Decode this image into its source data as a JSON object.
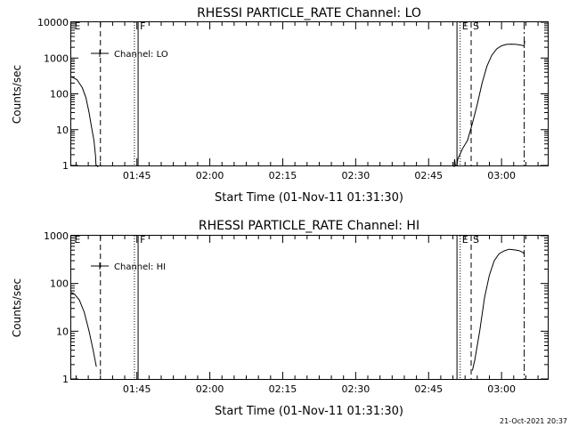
{
  "timestamp": "21-Oct-2021 20:37",
  "chart_data": [
    {
      "type": "line",
      "title": "RHESSI PARTICLE_RATE Channel: LO",
      "xlabel": "Start Time (01-Nov-11 01:31:30)",
      "ylabel": "Counts/sec",
      "yscale": "log",
      "ylim": [
        1,
        10000
      ],
      "yticks": [
        {
          "value": 1,
          "label": "1"
        },
        {
          "value": 10,
          "label": "10"
        },
        {
          "value": 100,
          "label": "100"
        },
        {
          "value": 1000,
          "label": "1000"
        },
        {
          "value": 10000,
          "label": "10000"
        }
      ],
      "xlim": [
        "01:31:30",
        "03:09:30"
      ],
      "xticks": [
        "01:45",
        "02:00",
        "02:15",
        "02:30",
        "02:45",
        "03:00"
      ],
      "legend": {
        "label": "Channel: LO",
        "placement": "top-left"
      },
      "markers": [
        {
          "time": "01:31:45",
          "label": "E",
          "style": "none"
        },
        {
          "time": "01:37:30",
          "label": "",
          "style": "dashed"
        },
        {
          "time": "01:44:30",
          "label": "",
          "style": "dotted"
        },
        {
          "time": "01:45:15",
          "label": "F",
          "style": "solid"
        },
        {
          "time": "02:50:50",
          "label": "",
          "style": "solid"
        },
        {
          "time": "02:51:30",
          "label": "E",
          "style": "dotted"
        },
        {
          "time": "02:53:45",
          "label": "S",
          "style": "dashed"
        },
        {
          "time": "03:04:40",
          "label": "",
          "style": "dashdot"
        }
      ],
      "series": [
        {
          "segments": [
            [
              [
                "01:31:30",
                300
              ],
              [
                "01:32:40",
                250
              ],
              [
                "01:33:45",
                150
              ],
              [
                "01:34:30",
                80
              ],
              [
                "01:35:10",
                30
              ],
              [
                "01:35:40",
                12
              ],
              [
                "01:36:10",
                5
              ],
              [
                "01:36:30",
                1.8
              ],
              [
                "01:36:35",
                1
              ],
              [
                "01:36:50",
                1
              ],
              [
                "01:37:00",
                0.8
              ]
            ],
            [
              [
                "02:50:15",
                0.9
              ],
              [
                "02:50:20",
                1.5
              ],
              [
                "02:50:30",
                1
              ],
              [
                "02:50:50",
                1
              ],
              [
                "02:51:00",
                1.5
              ],
              [
                "02:52:00",
                3
              ],
              [
                "02:53:00",
                5
              ],
              [
                "02:54:00",
                15
              ],
              [
                "02:55:00",
                50
              ],
              [
                "02:56:00",
                200
              ],
              [
                "02:57:00",
                600
              ],
              [
                "02:58:00",
                1200
              ],
              [
                "02:59:00",
                1800
              ],
              [
                "03:00:00",
                2200
              ],
              [
                "03:01:00",
                2400
              ],
              [
                "03:02:00",
                2450
              ],
              [
                "03:03:00",
                2400
              ],
              [
                "03:04:00",
                2300
              ],
              [
                "03:04:40",
                2200
              ],
              [
                "03:04:45",
                3000
              ]
            ]
          ]
        }
      ]
    },
    {
      "type": "line",
      "title": "RHESSI PARTICLE_RATE Channel: HI",
      "xlabel": "Start Time (01-Nov-11 01:31:30)",
      "ylabel": "Counts/sec",
      "yscale": "log",
      "ylim": [
        1,
        1000
      ],
      "yticks": [
        {
          "value": 1,
          "label": "1"
        },
        {
          "value": 10,
          "label": "10"
        },
        {
          "value": 100,
          "label": "100"
        },
        {
          "value": 1000,
          "label": "1000"
        }
      ],
      "xlim": [
        "01:31:30",
        "03:09:30"
      ],
      "xticks": [
        "01:45",
        "02:00",
        "02:15",
        "02:30",
        "02:45",
        "03:00"
      ],
      "legend": {
        "label": "Channel: HI",
        "placement": "top-left"
      },
      "markers": [
        {
          "time": "01:31:45",
          "label": "E",
          "style": "none"
        },
        {
          "time": "01:37:30",
          "label": "",
          "style": "dashed"
        },
        {
          "time": "01:44:30",
          "label": "",
          "style": "dotted"
        },
        {
          "time": "01:45:15",
          "label": "F",
          "style": "solid"
        },
        {
          "time": "02:50:50",
          "label": "",
          "style": "solid"
        },
        {
          "time": "02:51:30",
          "label": "E",
          "style": "dotted"
        },
        {
          "time": "02:53:45",
          "label": "S",
          "style": "dashed"
        },
        {
          "time": "03:04:40",
          "label": "",
          "style": "dashdot"
        }
      ],
      "series": [
        {
          "segments": [
            [
              [
                "01:31:30",
                65
              ],
              [
                "01:32:10",
                60
              ],
              [
                "01:33:10",
                45
              ],
              [
                "01:34:10",
                25
              ],
              [
                "01:35:10",
                10
              ],
              [
                "01:36:00",
                4
              ],
              [
                "01:36:40",
                1.8
              ]
            ],
            [
              [
                "02:54:00",
                1.5
              ],
              [
                "02:54:30",
                2.5
              ],
              [
                "02:55:30",
                10
              ],
              [
                "02:56:30",
                50
              ],
              [
                "02:57:30",
                150
              ],
              [
                "02:58:30",
                300
              ],
              [
                "02:59:30",
                420
              ],
              [
                "03:00:30",
                480
              ],
              [
                "03:01:30",
                520
              ],
              [
                "03:02:30",
                510
              ],
              [
                "03:03:30",
                490
              ],
              [
                "03:04:20",
                450
              ],
              [
                "03:04:40",
                420
              ]
            ]
          ]
        }
      ]
    }
  ]
}
